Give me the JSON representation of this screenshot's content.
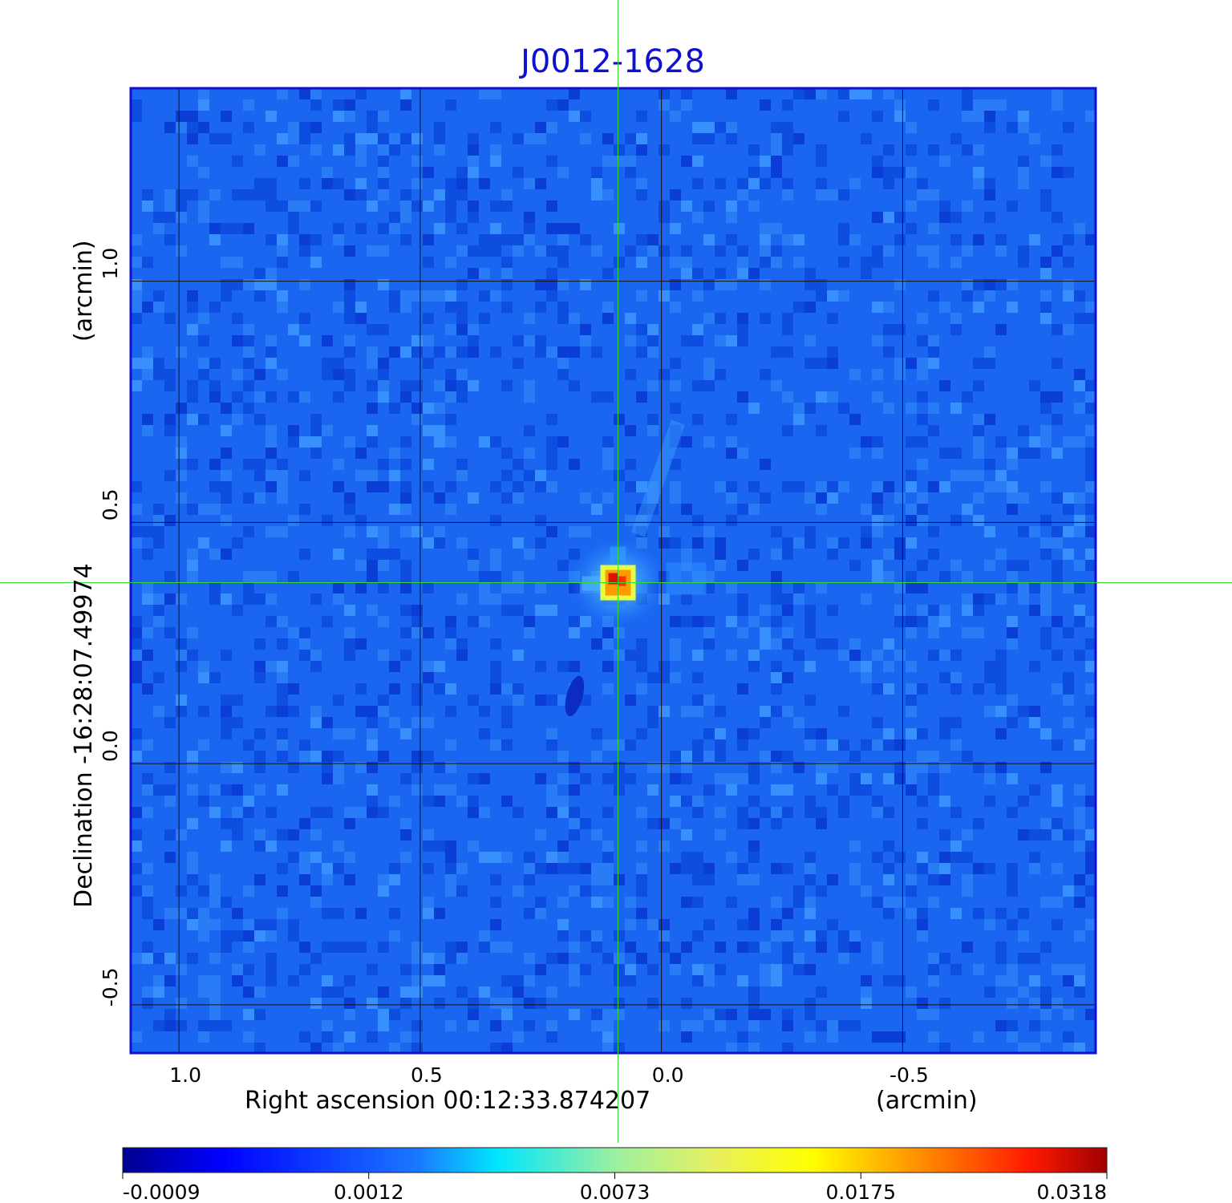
{
  "chart_data": {
    "type": "heatmap",
    "title": "J0012-1628",
    "xlabel": "Right ascension  00:12:33.874207",
    "xunit": "(arcmin)",
    "ylabel": "Declination  -16:28:07.49974",
    "yunit": "(arcmin)",
    "x_range": [
      1.1,
      -0.9
    ],
    "y_range": [
      -0.6,
      1.4
    ],
    "x_ticks": [
      1.0,
      0.5,
      0.0,
      -0.5
    ],
    "x_tick_labels": [
      "1.0",
      "0.5",
      "0.0",
      "-0.5"
    ],
    "y_ticks": [
      -0.5,
      0.0,
      0.5,
      1.0
    ],
    "y_tick_labels": [
      "-0.5",
      "0.0",
      "0.5",
      "1.0"
    ],
    "grid": true,
    "crosshair": {
      "x": 0.09,
      "y": 0.375,
      "color": "#33dd33"
    },
    "peak": {
      "x": 0.09,
      "y": 0.375,
      "value": 0.0318
    },
    "negative_feature": {
      "x": 0.18,
      "y": 0.14
    },
    "colorbar": {
      "colormap": "jet",
      "tick_values": [
        -0.0009,
        0.0012,
        0.0073,
        0.0175,
        0.0318
      ],
      "tick_labels": [
        "-0.0009",
        "0.0012",
        "0.0073",
        "0.0175",
        "0.0318"
      ]
    },
    "colors": {
      "title": "#1010d0",
      "frame": "#1010d0",
      "background_field": "#1a66f0"
    }
  }
}
